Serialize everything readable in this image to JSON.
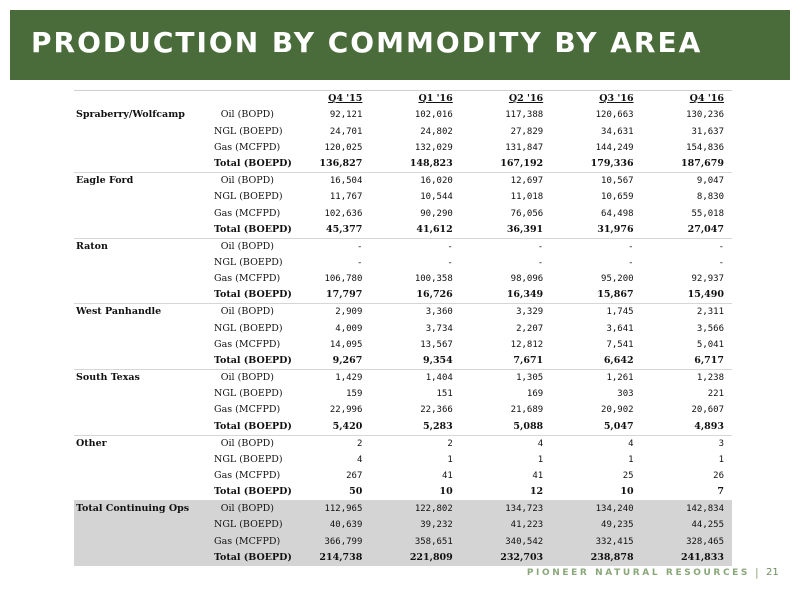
{
  "header": {
    "title": "PRODUCTION BY COMMODITY BY AREA"
  },
  "columns": [
    "Q4 '15",
    "Q1 '16",
    "Q2 '16",
    "Q3 '16",
    "Q4 '16"
  ],
  "groups": [
    {
      "area": "Spraberry/Wolfcamp",
      "rows": [
        {
          "metric": "Oil (BOPD)",
          "values": [
            "92,121",
            "102,016",
            "117,388",
            "120,663",
            "130,236"
          ]
        },
        {
          "metric": "NGL (BOEPD)",
          "values": [
            "24,701",
            "24,802",
            "27,829",
            "34,631",
            "31,637"
          ]
        },
        {
          "metric": "Gas (MCFPD)",
          "values": [
            "120,025",
            "132,029",
            "131,847",
            "144,249",
            "154,836"
          ]
        },
        {
          "metric": "Total (BOEPD)",
          "values": [
            "136,827",
            "148,823",
            "167,192",
            "179,336",
            "187,679"
          ],
          "total": true
        }
      ]
    },
    {
      "area": "Eagle Ford",
      "rows": [
        {
          "metric": "Oil (BOPD)",
          "values": [
            "16,504",
            "16,020",
            "12,697",
            "10,567",
            "9,047"
          ]
        },
        {
          "metric": "NGL (BOEPD)",
          "values": [
            "11,767",
            "10,544",
            "11,018",
            "10,659",
            "8,830"
          ]
        },
        {
          "metric": "Gas (MCFPD)",
          "values": [
            "102,636",
            "90,290",
            "76,056",
            "64,498",
            "55,018"
          ]
        },
        {
          "metric": "Total (BOEPD)",
          "values": [
            "45,377",
            "41,612",
            "36,391",
            "31,976",
            "27,047"
          ],
          "total": true
        }
      ]
    },
    {
      "area": "Raton",
      "rows": [
        {
          "metric": "Oil (BOPD)",
          "values": [
            "-",
            "-",
            "-",
            "-",
            "-"
          ]
        },
        {
          "metric": "NGL (BOEPD)",
          "values": [
            "-",
            "-",
            "-",
            "-",
            "-"
          ]
        },
        {
          "metric": "Gas (MCFPD)",
          "values": [
            "106,780",
            "100,358",
            "98,096",
            "95,200",
            "92,937"
          ]
        },
        {
          "metric": "Total (BOEPD)",
          "values": [
            "17,797",
            "16,726",
            "16,349",
            "15,867",
            "15,490"
          ],
          "total": true
        }
      ]
    },
    {
      "area": "West Panhandle",
      "rows": [
        {
          "metric": "Oil (BOPD)",
          "values": [
            "2,909",
            "3,360",
            "3,329",
            "1,745",
            "2,311"
          ]
        },
        {
          "metric": "NGL (BOEPD)",
          "values": [
            "4,009",
            "3,734",
            "2,207",
            "3,641",
            "3,566"
          ]
        },
        {
          "metric": "Gas (MCFPD)",
          "values": [
            "14,095",
            "13,567",
            "12,812",
            "7,541",
            "5,041"
          ]
        },
        {
          "metric": "Total (BOEPD)",
          "values": [
            "9,267",
            "9,354",
            "7,671",
            "6,642",
            "6,717"
          ],
          "total": true
        }
      ]
    },
    {
      "area": "South Texas",
      "rows": [
        {
          "metric": "Oil (BOPD)",
          "values": [
            "1,429",
            "1,404",
            "1,305",
            "1,261",
            "1,238"
          ]
        },
        {
          "metric": "NGL (BOEPD)",
          "values": [
            "159",
            "151",
            "169",
            "303",
            "221"
          ]
        },
        {
          "metric": "Gas (MCFPD)",
          "values": [
            "22,996",
            "22,366",
            "21,689",
            "20,902",
            "20,607"
          ]
        },
        {
          "metric": "Total (BOEPD)",
          "values": [
            "5,420",
            "5,283",
            "5,088",
            "5,047",
            "4,893"
          ],
          "total": true
        }
      ]
    },
    {
      "area": "Other",
      "rows": [
        {
          "metric": "Oil (BOPD)",
          "values": [
            "2",
            "2",
            "4",
            "4",
            "3"
          ]
        },
        {
          "metric": "NGL (BOEPD)",
          "values": [
            "4",
            "1",
            "1",
            "1",
            "1"
          ]
        },
        {
          "metric": "Gas (MCFPD)",
          "values": [
            "267",
            "41",
            "41",
            "25",
            "26"
          ]
        },
        {
          "metric": "Total (BOEPD)",
          "values": [
            "50",
            "10",
            "12",
            "10",
            "7"
          ],
          "total": true
        }
      ]
    },
    {
      "area": "Total Continuing Ops",
      "grand": true,
      "rows": [
        {
          "metric": "Oil (BOPD)",
          "values": [
            "112,965",
            "122,802",
            "134,723",
            "134,240",
            "142,834"
          ]
        },
        {
          "metric": "NGL (BOEPD)",
          "values": [
            "40,639",
            "39,232",
            "41,223",
            "49,235",
            "44,255"
          ]
        },
        {
          "metric": "Gas (MCFPD)",
          "values": [
            "366,799",
            "358,651",
            "340,542",
            "332,415",
            "328,465"
          ]
        },
        {
          "metric": "Total (BOEPD)",
          "values": [
            "214,738",
            "221,809",
            "232,703",
            "238,878",
            "241,833"
          ],
          "total": true
        }
      ]
    }
  ],
  "footer": {
    "brand": "PIONEER NATURAL RESOURCES",
    "separator": "|",
    "page": "21"
  }
}
